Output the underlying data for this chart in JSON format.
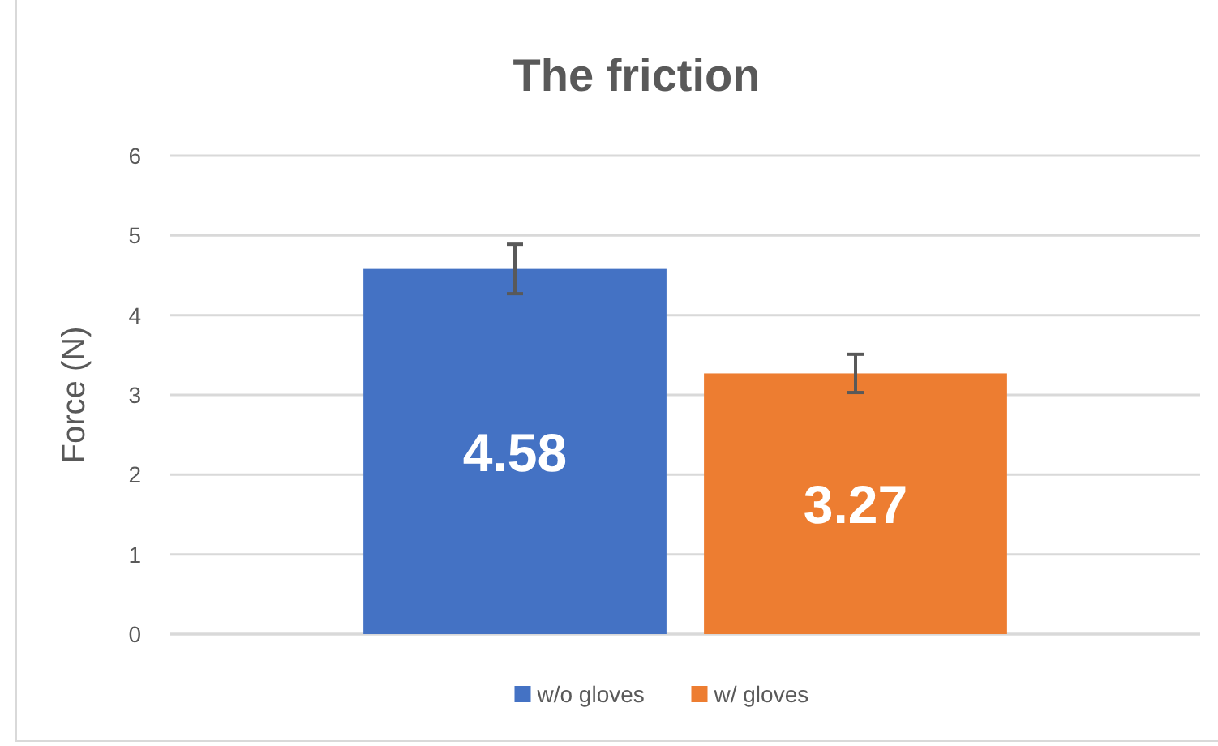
{
  "chart_data": {
    "type": "bar",
    "title": "The friction",
    "ylabel": "Force (N)",
    "categories": [
      null
    ],
    "series": [
      {
        "name": "w/o gloves",
        "color": "#4472c4",
        "values": [
          4.58
        ],
        "errors": [
          0.31
        ]
      },
      {
        "name": "w/ gloves",
        "color": "#ed7d31",
        "values": [
          3.27
        ],
        "errors": [
          0.24
        ]
      }
    ],
    "ylim": [
      0,
      6
    ],
    "yticks": [
      0,
      1,
      2,
      3,
      4,
      5,
      6
    ],
    "grid": "y",
    "legend": "bottom",
    "data_labels": true
  }
}
